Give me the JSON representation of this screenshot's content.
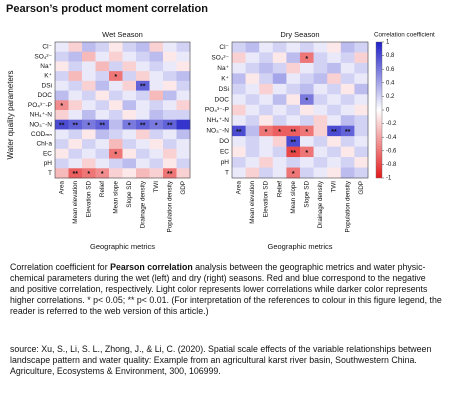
{
  "header": {
    "title": "Pearson’s product moment correlation"
  },
  "chart_data": [
    {
      "type": "heatmap",
      "title": "Wet Season",
      "ylabel": "Water quality parameters",
      "xlabel": "Geographic metrics",
      "rows": [
        "Cl⁻",
        "SO₄²⁻",
        "Na⁺",
        "K⁺",
        "DSi",
        "DOC",
        "PO₄³⁻-P",
        "NH₄⁺-N",
        "NO₃⁻-N",
        "CODₘₙ",
        "Chl-a",
        "EC",
        "pH",
        "T"
      ],
      "columns": [
        "Area",
        "Mean elevation",
        "Elevation SD",
        "Relief",
        "Mean slope",
        "Slope SD",
        "Drainage density",
        "TWI",
        "Population density",
        "GDP"
      ],
      "values": [
        [
          0.1,
          -0.2,
          0.3,
          0.2,
          -0.1,
          0.2,
          0.3,
          -0.2,
          0.1,
          0.2
        ],
        [
          0.2,
          0.3,
          -0.3,
          0.1,
          -0.2,
          0.1,
          0.2,
          0.3,
          -0.1,
          0.1
        ],
        [
          -0.1,
          0.2,
          0.1,
          -0.3,
          0.2,
          -0.2,
          0.1,
          0.2,
          0.1,
          -0.1
        ],
        [
          0.2,
          -0.3,
          0.1,
          0.2,
          -0.6,
          0.2,
          -0.2,
          0.1,
          0.2,
          0.3
        ],
        [
          0.1,
          0.2,
          -0.2,
          0.3,
          0.1,
          -0.2,
          0.7,
          0.1,
          -0.1,
          0.2
        ],
        [
          0.3,
          0.1,
          0.2,
          -0.1,
          0.2,
          0.1,
          0.2,
          -0.3,
          0.3,
          0.1
        ],
        [
          -0.5,
          -0.2,
          0.1,
          0.2,
          -0.1,
          0.3,
          0.1,
          0.2,
          0.1,
          -0.2
        ],
        [
          -0.2,
          0.1,
          0.3,
          0.1,
          0.2,
          -0.1,
          0.1,
          0.3,
          0.2,
          0.2
        ],
        [
          0.8,
          0.7,
          0.6,
          0.7,
          0.3,
          0.6,
          0.7,
          0.6,
          0.7,
          0.9
        ],
        [
          0.1,
          0.2,
          -0.1,
          0.3,
          0.2,
          0.1,
          -0.2,
          0.2,
          0.1,
          0.3
        ],
        [
          0.2,
          -0.1,
          0.2,
          0.1,
          -0.3,
          0.2,
          0.1,
          -0.1,
          0.2,
          0.1
        ],
        [
          -0.1,
          0.2,
          0.1,
          0.2,
          -0.6,
          -0.1,
          0.2,
          0.1,
          -0.2,
          0.1
        ],
        [
          0.2,
          0.1,
          -0.2,
          0.1,
          0.2,
          0.3,
          0.1,
          0.2,
          -0.1,
          0.2
        ],
        [
          -0.3,
          -0.7,
          -0.6,
          -0.5,
          -0.2,
          -0.1,
          -0.3,
          -0.2,
          -0.6,
          -0.2
        ]
      ],
      "stars": [
        [
          null,
          null,
          null,
          null,
          null,
          null,
          null,
          null,
          null,
          null
        ],
        [
          null,
          null,
          null,
          null,
          null,
          null,
          null,
          null,
          null,
          null
        ],
        [
          null,
          null,
          null,
          null,
          null,
          null,
          null,
          null,
          null,
          null
        ],
        [
          null,
          null,
          null,
          null,
          "*",
          null,
          null,
          null,
          null,
          null
        ],
        [
          null,
          null,
          null,
          null,
          null,
          null,
          "**",
          null,
          null,
          null
        ],
        [
          null,
          null,
          null,
          null,
          null,
          null,
          null,
          null,
          null,
          null
        ],
        [
          "*",
          null,
          null,
          null,
          null,
          null,
          null,
          null,
          null,
          null
        ],
        [
          null,
          null,
          null,
          null,
          null,
          null,
          null,
          null,
          null,
          null
        ],
        [
          "**",
          "**",
          "*",
          "**",
          null,
          "*",
          "**",
          "*",
          "**",
          null
        ],
        [
          null,
          null,
          null,
          null,
          null,
          null,
          null,
          null,
          null,
          null
        ],
        [
          null,
          null,
          null,
          null,
          null,
          null,
          null,
          null,
          null,
          null
        ],
        [
          null,
          null,
          null,
          null,
          "*",
          null,
          null,
          null,
          null,
          null
        ],
        [
          null,
          null,
          null,
          null,
          null,
          null,
          null,
          null,
          null,
          null
        ],
        [
          null,
          "**",
          "*",
          "*",
          null,
          null,
          null,
          null,
          "**",
          null
        ]
      ]
    },
    {
      "type": "heatmap",
      "title": "Dry Season",
      "xlabel": "Geographic metrics",
      "colorbar_label": "Correlation coefficient",
      "clim": [
        -1,
        1
      ],
      "cticks": [
        1,
        0.8,
        0.6,
        0.4,
        0.2,
        0,
        -0.2,
        -0.4,
        -0.6,
        -0.8,
        -1
      ],
      "rows": [
        "Cl⁻",
        "SO₄²⁻",
        "Na⁺",
        "K⁺",
        "DSi",
        "DOC",
        "PO₄³⁻-P",
        "NH₄⁺-N",
        "NO₃⁻-N",
        "DO",
        "EC",
        "pH",
        "T"
      ],
      "columns": [
        "Area",
        "Mean elevation",
        "Elevation SD",
        "Relief",
        "Mean slope",
        "Slope SD",
        "Drainage density",
        "TWI",
        "Population density",
        "GDP"
      ],
      "values": [
        [
          0.2,
          0.3,
          0.1,
          0.2,
          0.1,
          0.2,
          0.1,
          -0.1,
          0.3,
          0.2
        ],
        [
          -0.2,
          0.1,
          0.2,
          -0.1,
          0.3,
          -0.6,
          0.2,
          0.1,
          0.2,
          -0.2
        ],
        [
          0.1,
          0.2,
          0.3,
          0.2,
          -0.2,
          0.1,
          0.2,
          0.3,
          0.1,
          0.2
        ],
        [
          0.3,
          -0.1,
          0.2,
          0.4,
          0.1,
          0.2,
          0.3,
          -0.2,
          0.2,
          0.1
        ],
        [
          0.2,
          0.1,
          -0.2,
          0.1,
          0.2,
          0.3,
          0.1,
          0.2,
          -0.1,
          0.3
        ],
        [
          0.1,
          0.2,
          0.1,
          0.3,
          -0.1,
          0.6,
          0.2,
          0.1,
          0.2,
          0.1
        ],
        [
          -0.2,
          0.1,
          0.2,
          0.1,
          0.2,
          -0.1,
          0.1,
          0.2,
          0.1,
          -0.1
        ],
        [
          0.1,
          0.2,
          -0.1,
          0.2,
          0.1,
          0.2,
          -0.2,
          0.1,
          0.3,
          0.2
        ],
        [
          0.8,
          0.3,
          -0.6,
          -0.7,
          -0.7,
          -0.6,
          -0.2,
          0.8,
          0.7,
          0.2
        ],
        [
          0.1,
          0.2,
          0.1,
          -0.2,
          0.8,
          0.1,
          0.2,
          -0.1,
          0.2,
          0.1
        ],
        [
          -0.1,
          0.2,
          0.1,
          0.2,
          -0.8,
          -0.6,
          0.1,
          0.2,
          -0.1,
          0.2
        ],
        [
          0.2,
          0.1,
          -0.2,
          0.1,
          0.2,
          0.1,
          0.2,
          0.1,
          0.2,
          -0.1
        ],
        [
          0.1,
          -0.2,
          0.2,
          0.1,
          -0.6,
          0.2,
          0.1,
          -0.1,
          0.3,
          0.2
        ]
      ],
      "stars": [
        [
          null,
          null,
          null,
          null,
          null,
          null,
          null,
          null,
          null,
          null
        ],
        [
          null,
          null,
          null,
          null,
          null,
          "*",
          null,
          null,
          null,
          null
        ],
        [
          null,
          null,
          null,
          null,
          null,
          null,
          null,
          null,
          null,
          null
        ],
        [
          null,
          null,
          null,
          null,
          null,
          null,
          null,
          null,
          null,
          null
        ],
        [
          null,
          null,
          null,
          null,
          null,
          null,
          null,
          null,
          null,
          null
        ],
        [
          null,
          null,
          null,
          null,
          null,
          "*",
          null,
          null,
          null,
          null
        ],
        [
          null,
          null,
          null,
          null,
          null,
          null,
          null,
          null,
          null,
          null
        ],
        [
          null,
          null,
          null,
          null,
          null,
          null,
          null,
          null,
          null,
          null
        ],
        [
          "**",
          null,
          "*",
          "*",
          "**",
          "*",
          null,
          "**",
          "**",
          null
        ],
        [
          null,
          null,
          null,
          null,
          "**",
          null,
          null,
          null,
          null,
          null
        ],
        [
          null,
          null,
          null,
          null,
          "**",
          "*",
          null,
          null,
          null,
          null
        ],
        [
          null,
          null,
          null,
          null,
          null,
          null,
          null,
          null,
          null,
          null
        ],
        [
          null,
          null,
          null,
          null,
          "*",
          null,
          null,
          null,
          null,
          null
        ]
      ]
    }
  ],
  "caption": [
    "Correlation coefficient for ",
    "Pearson correlation",
    " analysis between the geographic metrics and water physic-chemical parameters during the wet (left) and dry (right) seasons. Red and blue correspond to the negative and positive correlation, respectively. Light color represents lower correlations while darker color represents higher correlations. * p< 0.05; ** p< 0.01. (For interpretation of the references to colour in this figure legend, the reader is referred to the web version of this article.)"
  ],
  "source": "source: Xu, S., Li, S. L., Zhong, J., & Li, C. (2020). Spatial scale effects of the variable relationships between landscape pattern and water quality: Example from an agricultural karst river basin, Southwestern China. Agriculture, Ecosystems & Environment, 300, 106999."
}
